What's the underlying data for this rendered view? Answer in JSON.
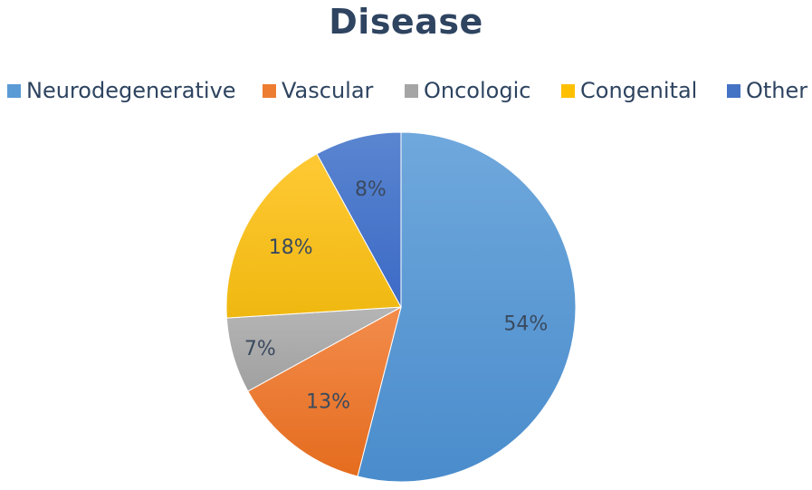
{
  "chart_data": {
    "type": "pie",
    "title": "Disease",
    "categories": [
      "Neurodegenerative",
      "Vascular",
      "Oncologic",
      "Congenital",
      "Other"
    ],
    "values": [
      54,
      13,
      7,
      18,
      8
    ],
    "labels": [
      "54%",
      "13%",
      "7%",
      "18%",
      "8%"
    ],
    "colors": [
      "#5b9bd5",
      "#ed7d31",
      "#a5a5a5",
      "#ffc000",
      "#4472c4"
    ],
    "legend_position": "top",
    "start_angle": "12 o'clock",
    "direction": "clockwise"
  },
  "legend": {
    "items": [
      {
        "label": "Neurodegenerative",
        "color": "#5b9bd5"
      },
      {
        "label": "Vascular",
        "color": "#ed7d31"
      },
      {
        "label": "Oncologic",
        "color": "#a5a5a5"
      },
      {
        "label": "Congenital",
        "color": "#ffc000"
      },
      {
        "label": "Other",
        "color": "#4472c4"
      }
    ]
  }
}
